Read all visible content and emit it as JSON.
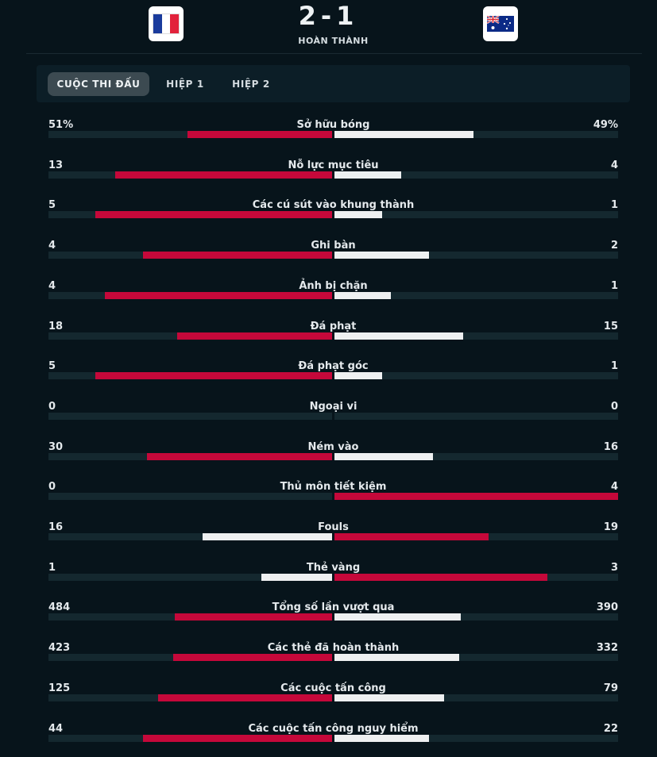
{
  "match": {
    "score": "2-1",
    "status": "HOÀN THÀNH"
  },
  "teams": {
    "home_flag_icon": "france-flag-icon",
    "away_flag_icon": "australia-flag-icon"
  },
  "tabs": [
    {
      "label": "CUỘC THI ĐẤU",
      "active": true
    },
    {
      "label": "HIỆP 1",
      "active": false
    },
    {
      "label": "HIỆP 2",
      "active": false
    }
  ],
  "colors": {
    "leader": "#c5083a",
    "trailer": "#eef0f1",
    "track": "#14282f",
    "background": "#07141b"
  },
  "stats": [
    {
      "label": "Sở hữu bóng",
      "home": "51%",
      "away": "49%",
      "home_val": 51,
      "away_val": 49
    },
    {
      "label": "Nỗ lực mục tiêu",
      "home": "13",
      "away": "4",
      "home_val": 13,
      "away_val": 4
    },
    {
      "label": "Các cú sút vào khung thành",
      "home": "5",
      "away": "1",
      "home_val": 5,
      "away_val": 1
    },
    {
      "label": "Ghi bàn",
      "home": "4",
      "away": "2",
      "home_val": 4,
      "away_val": 2
    },
    {
      "label": "Ảnh bị chặn",
      "home": "4",
      "away": "1",
      "home_val": 4,
      "away_val": 1
    },
    {
      "label": "Đá phạt",
      "home": "18",
      "away": "15",
      "home_val": 18,
      "away_val": 15
    },
    {
      "label": "Đá phạt góc",
      "home": "5",
      "away": "1",
      "home_val": 5,
      "away_val": 1
    },
    {
      "label": "Ngoại vi",
      "home": "0",
      "away": "0",
      "home_val": 0,
      "away_val": 0
    },
    {
      "label": "Ném vào",
      "home": "30",
      "away": "16",
      "home_val": 30,
      "away_val": 16
    },
    {
      "label": "Thủ môn tiết kiệm",
      "home": "0",
      "away": "4",
      "home_val": 0,
      "away_val": 4
    },
    {
      "label": "Fouls",
      "home": "16",
      "away": "19",
      "home_val": 16,
      "away_val": 19
    },
    {
      "label": "Thẻ vàng",
      "home": "1",
      "away": "3",
      "home_val": 1,
      "away_val": 3
    },
    {
      "label": "Tổng số lần vượt qua",
      "home": "484",
      "away": "390",
      "home_val": 484,
      "away_val": 390
    },
    {
      "label": "Các thẻ đã hoàn thành",
      "home": "423",
      "away": "332",
      "home_val": 423,
      "away_val": 332
    },
    {
      "label": "Các cuộc tấn công",
      "home": "125",
      "away": "79",
      "home_val": 125,
      "away_val": 79
    },
    {
      "label": "Các cuộc tấn công nguy hiểm",
      "home": "44",
      "away": "22",
      "home_val": 44,
      "away_val": 22
    }
  ]
}
